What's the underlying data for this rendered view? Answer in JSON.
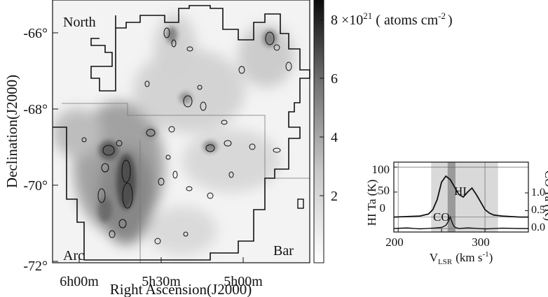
{
  "chart_data": [
    {
      "type": "heatmap",
      "xlabel": "Right Ascension(J2000)",
      "ylabel": "Declination(J2000)",
      "x_ticks": [
        "6h00m",
        "5h30m",
        "5h00m"
      ],
      "y_ticks": [
        "-66°",
        "-68°",
        "-70°",
        "-72°"
      ],
      "annotations": [
        "North",
        "Arc",
        "Bar"
      ],
      "colorbar": {
        "label_prefix": "8 ×10",
        "label_exp": "21",
        "label_suffix": "( atoms cm",
        "label_unit_exp": "-2",
        "label_close": ")",
        "ticks": [
          "2",
          "4",
          "6"
        ],
        "range": [
          0,
          9
        ],
        "colormap": "gray_r"
      },
      "contours": "CO"
    },
    {
      "type": "line",
      "xlabel_main": "V",
      "xlabel_sub": "LSR",
      "xlabel_units": "(km s",
      "xlabel_units_exp": "-1",
      "xlabel_close": ")",
      "ylabel_left": "HI Ta (K)",
      "ylabel_right": "CO Ta (K)",
      "x_ticks": [
        "200",
        "300"
      ],
      "y_ticks_left": [
        "100",
        "50",
        "0"
      ],
      "y_ticks_right": [
        "1.0",
        "0.5",
        "0.0"
      ],
      "xlim": [
        195,
        350
      ],
      "ylim_left": [
        -30,
        110
      ],
      "shaded_range": [
        238,
        315
      ],
      "dark_range": [
        257,
        266
      ],
      "series": [
        {
          "name": "HI",
          "x": [
            195,
            210,
            225,
            235,
            240,
            245,
            250,
            255,
            260,
            265,
            270,
            275,
            280,
            285,
            290,
            295,
            300,
            305,
            310,
            320,
            330,
            340,
            350
          ],
          "values": [
            0,
            1,
            2,
            6,
            15,
            35,
            70,
            82,
            75,
            60,
            45,
            40,
            50,
            58,
            45,
            30,
            15,
            8,
            4,
            2,
            1,
            0,
            0
          ]
        },
        {
          "name": "CO",
          "x": [
            195,
            210,
            225,
            240,
            250,
            255,
            258,
            260,
            262,
            264,
            266,
            270,
            280,
            300,
            320,
            340,
            350
          ],
          "values": [
            0,
            0.03,
            -0.02,
            0.02,
            0.05,
            0.15,
            0.35,
            0.55,
            0.3,
            0.12,
            0.05,
            0,
            0.03,
            -0.02,
            0.02,
            0,
            0
          ]
        }
      ]
    }
  ]
}
